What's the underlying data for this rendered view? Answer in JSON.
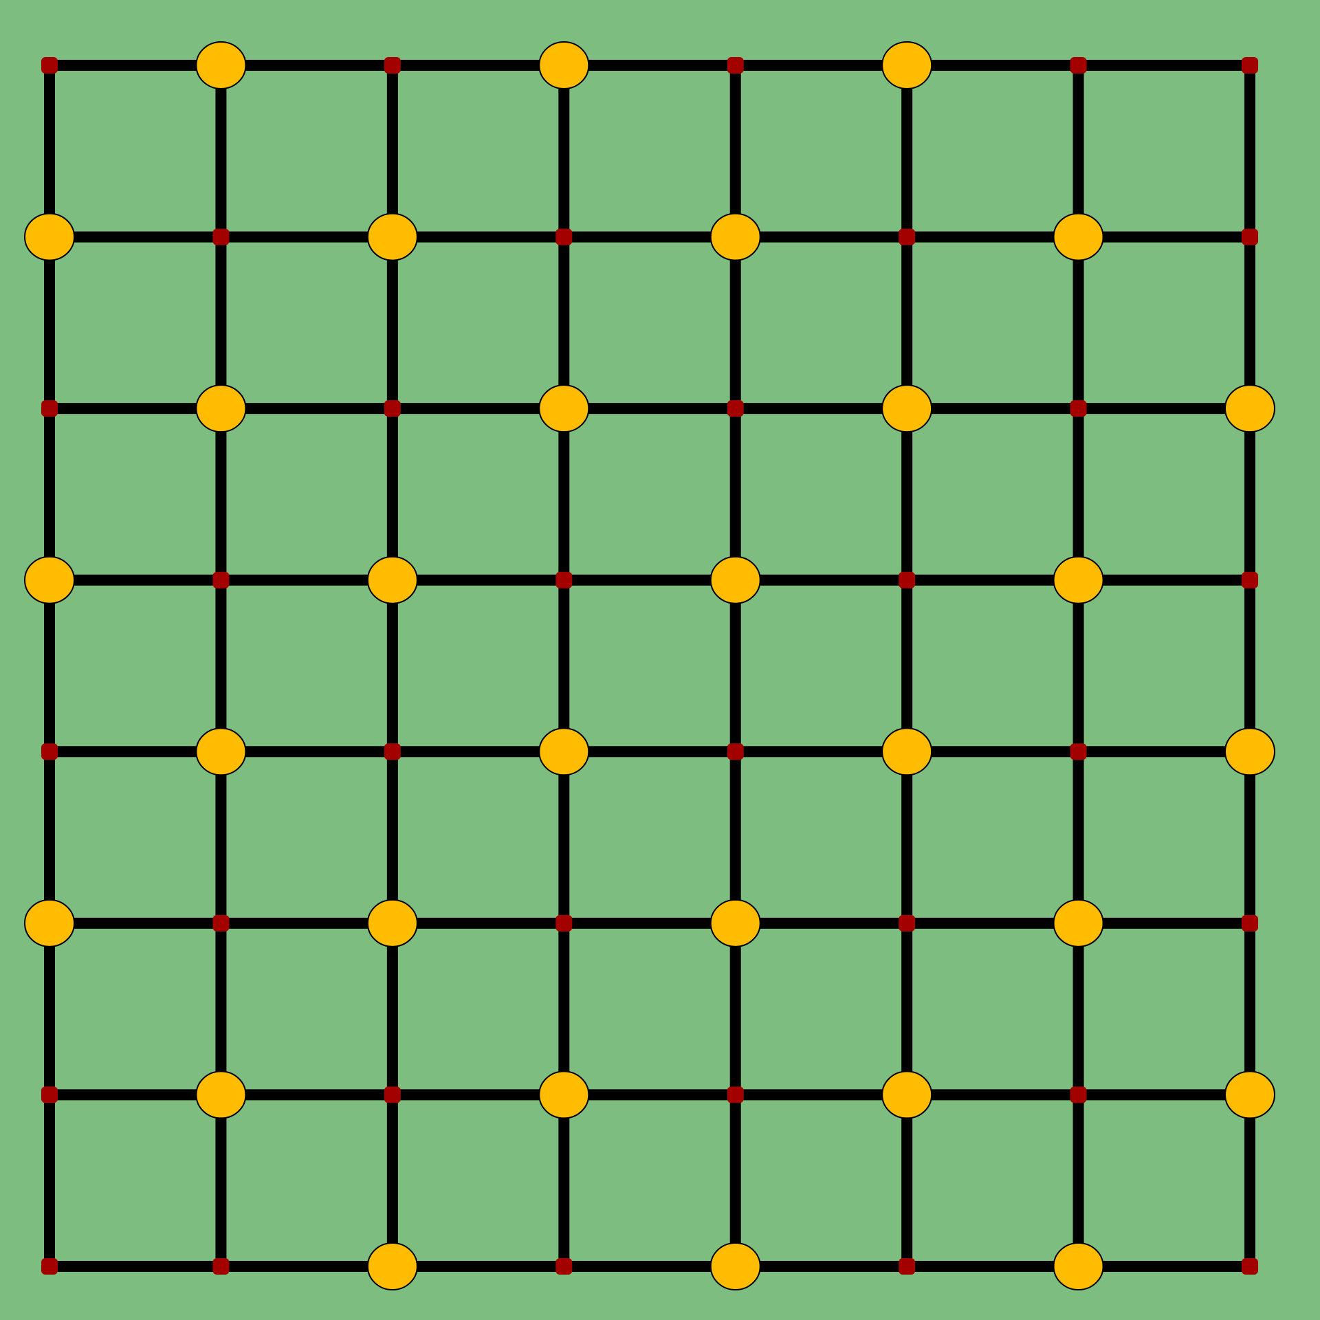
{
  "board": {
    "grid_size": 8,
    "colors": {
      "background": "#7dbe80",
      "line": "#000000",
      "node": "#a30000",
      "token": "#ffbc00",
      "token_outline": "#000000"
    },
    "tokens": [
      {
        "row": 0,
        "col": 1
      },
      {
        "row": 0,
        "col": 3
      },
      {
        "row": 0,
        "col": 5
      },
      {
        "row": 1,
        "col": 0
      },
      {
        "row": 1,
        "col": 2
      },
      {
        "row": 1,
        "col": 4
      },
      {
        "row": 1,
        "col": 6
      },
      {
        "row": 2,
        "col": 1
      },
      {
        "row": 2,
        "col": 3
      },
      {
        "row": 2,
        "col": 5
      },
      {
        "row": 2,
        "col": 7
      },
      {
        "row": 3,
        "col": 0
      },
      {
        "row": 3,
        "col": 2
      },
      {
        "row": 3,
        "col": 4
      },
      {
        "row": 3,
        "col": 6
      },
      {
        "row": 4,
        "col": 1
      },
      {
        "row": 4,
        "col": 3
      },
      {
        "row": 4,
        "col": 5
      },
      {
        "row": 4,
        "col": 7
      },
      {
        "row": 5,
        "col": 0
      },
      {
        "row": 5,
        "col": 2
      },
      {
        "row": 5,
        "col": 4
      },
      {
        "row": 5,
        "col": 6
      },
      {
        "row": 6,
        "col": 1
      },
      {
        "row": 6,
        "col": 3
      },
      {
        "row": 6,
        "col": 5
      },
      {
        "row": 6,
        "col": 7
      },
      {
        "row": 7,
        "col": 2
      },
      {
        "row": 7,
        "col": 4
      },
      {
        "row": 7,
        "col": 6
      }
    ]
  }
}
